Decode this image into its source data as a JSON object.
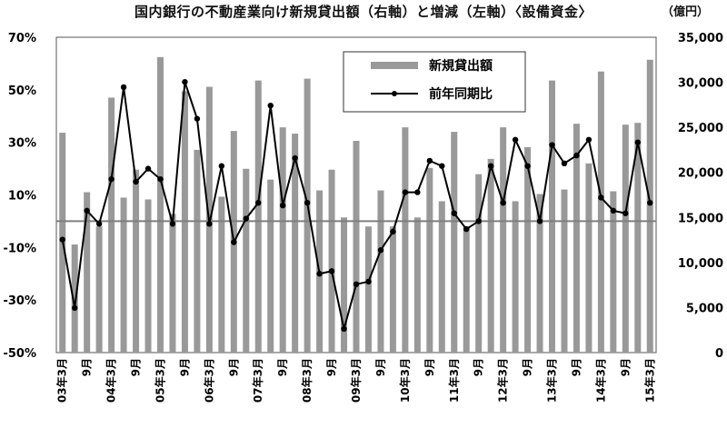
{
  "title": "国内銀行の不動産業向け新規貸出額（右軸）と増減（左軸）〈設備資金〉",
  "unit": "（億円）",
  "chart_data": {
    "type": "bar+line",
    "title": "国内銀行の不動産業向け新規貸出額（右軸）と増減（左軸）〈設備資金〉",
    "y_left": {
      "min": -50,
      "max": 70,
      "ticks": [
        "70%",
        "50%",
        "30%",
        "10%",
        "-10%",
        "-30%",
        "-50%"
      ],
      "tick_values": [
        70,
        50,
        30,
        10,
        -10,
        -30,
        -50
      ]
    },
    "y_right": {
      "min": 0,
      "max": 35000,
      "ticks": [
        "35,000",
        "30,000",
        "25,000",
        "20,000",
        "15,000",
        "10,000",
        "5,000",
        "0"
      ],
      "tick_values": [
        35000,
        30000,
        25000,
        20000,
        15000,
        10000,
        5000,
        0
      ]
    },
    "x_labels": [
      {
        "index": 0,
        "label": "03年3月"
      },
      {
        "index": 2,
        "label": "9月"
      },
      {
        "index": 4,
        "label": "04年3月"
      },
      {
        "index": 6,
        "label": "9月"
      },
      {
        "index": 8,
        "label": "05年3月"
      },
      {
        "index": 10,
        "label": "9月"
      },
      {
        "index": 12,
        "label": "06年3月"
      },
      {
        "index": 14,
        "label": "9月"
      },
      {
        "index": 16,
        "label": "07年3月"
      },
      {
        "index": 18,
        "label": "9月"
      },
      {
        "index": 20,
        "label": "08年3月"
      },
      {
        "index": 22,
        "label": "9月"
      },
      {
        "index": 24,
        "label": "09年3月"
      },
      {
        "index": 26,
        "label": "9月"
      },
      {
        "index": 28,
        "label": "10年3月"
      },
      {
        "index": 30,
        "label": "9月"
      },
      {
        "index": 32,
        "label": "11年3月"
      },
      {
        "index": 34,
        "label": "9月"
      },
      {
        "index": 36,
        "label": "12年3月"
      },
      {
        "index": 38,
        "label": "9月"
      },
      {
        "index": 40,
        "label": "13年3月"
      },
      {
        "index": 42,
        "label": "9月"
      },
      {
        "index": 44,
        "label": "14年3月"
      },
      {
        "index": 46,
        "label": "9月"
      },
      {
        "index": 48,
        "label": "15年3月"
      }
    ],
    "reference_line_left": 0,
    "series": [
      {
        "name": "新規貸出額",
        "type": "bar",
        "axis": "right",
        "color": "#999999",
        "values": [
          24400,
          12000,
          17800,
          14000,
          28300,
          17200,
          20300,
          17000,
          32800,
          15400,
          29000,
          22500,
          29500,
          17300,
          24600,
          20400,
          30200,
          19200,
          25000,
          24300,
          30400,
          18000,
          20300,
          15000,
          23500,
          14000,
          18000,
          14000,
          25000,
          15000,
          20500,
          16800,
          24500,
          14000,
          19800,
          21500,
          25000,
          16800,
          22800,
          17600,
          30200,
          18100,
          25400,
          21000,
          31200,
          17900,
          25300,
          25500,
          32500
        ]
      },
      {
        "name": "前年同期比",
        "type": "line",
        "axis": "left",
        "color": "#000000",
        "values": [
          -7,
          -33,
          4,
          -1,
          16,
          51,
          15,
          20,
          16,
          -1,
          53,
          39,
          -1,
          21,
          -8,
          1,
          7,
          44,
          6,
          24,
          7,
          -20,
          -19,
          -41,
          -24,
          -23,
          -11,
          -4,
          11,
          11,
          23,
          21,
          3,
          -3,
          0,
          21,
          7,
          31,
          21,
          0,
          29,
          22,
          25,
          31,
          9,
          4,
          3,
          30,
          7
        ]
      }
    ],
    "legend": {
      "placement": "top-center",
      "entries": [
        "新規貸出額",
        "前年同期比"
      ]
    }
  }
}
